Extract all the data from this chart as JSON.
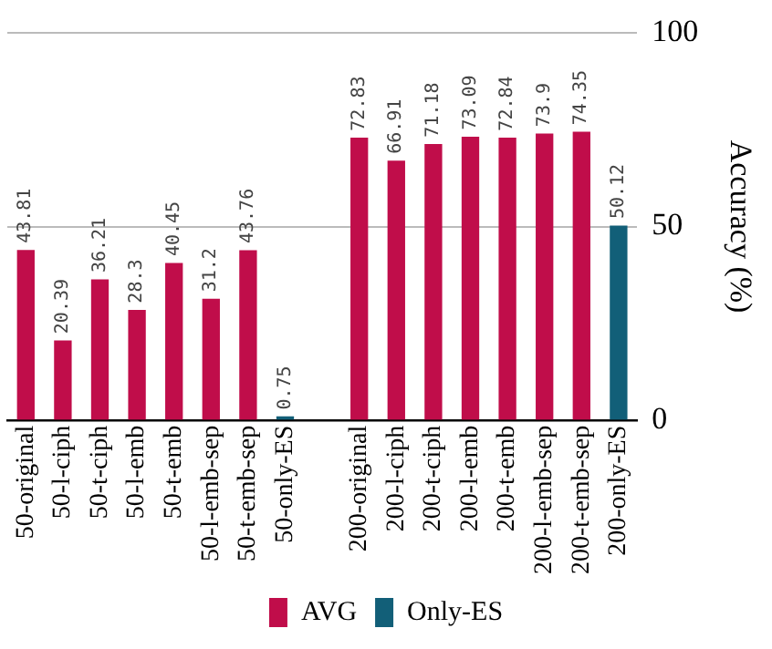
{
  "chart_data": {
    "type": "bar",
    "ylabel": "Accuracy (%)",
    "categories": [
      "50-original",
      "50-l-ciph",
      "50-t-ciph",
      "50-l-emb",
      "50-t-emb",
      "50-l-emb-sep",
      "50-t-emb-sep",
      "50-only-ES",
      null,
      "200-original",
      "200-l-ciph",
      "200-t-ciph",
      "200-l-emb",
      "200-t-emb",
      "200-l-emb-sep",
      "200-t-emb-sep",
      "200-only-ES"
    ],
    "series": [
      {
        "name": "AVG",
        "color": "#c00d4a",
        "values": [
          43.81,
          20.39,
          36.21,
          28.3,
          40.45,
          31.2,
          43.76,
          null,
          null,
          72.83,
          66.91,
          71.18,
          73.09,
          72.84,
          73.9,
          74.35,
          null
        ]
      },
      {
        "name": "Only-ES",
        "color": "#125f78",
        "values": [
          null,
          null,
          null,
          null,
          null,
          null,
          null,
          0.75,
          null,
          null,
          null,
          null,
          null,
          null,
          null,
          null,
          50.12
        ]
      }
    ],
    "ylim": [
      0,
      100
    ],
    "yticks": [
      0,
      50,
      100
    ],
    "grid": "y",
    "legend": "bottom",
    "data_labels": true
  }
}
